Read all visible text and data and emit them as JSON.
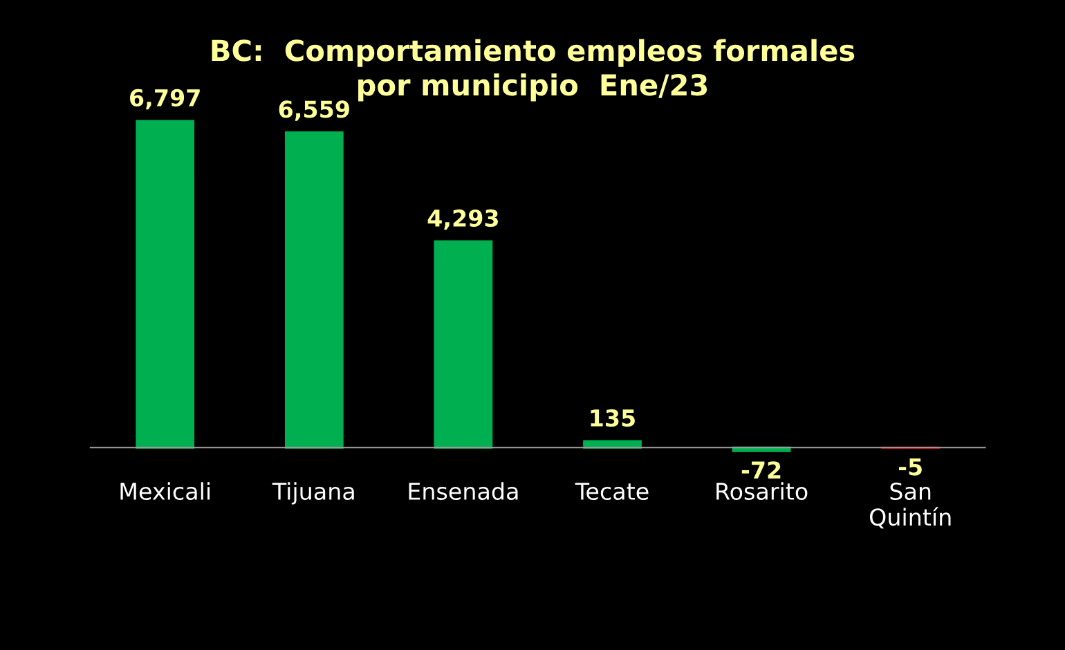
{
  "chart_data": {
    "type": "bar",
    "title": "BC:  Comportamiento empleos formales\npor municipio  Ene/23",
    "categories": [
      "Mexicali",
      "Tijuana",
      "Ensenada",
      "Tecate",
      "Rosarito",
      "San Quintín"
    ],
    "values": [
      6797,
      6559,
      4293,
      135,
      -72,
      -5
    ],
    "colors": [
      "#00b050",
      "#00b050",
      "#00b050",
      "#00b050",
      "#00b050",
      "#c00000"
    ],
    "value_labels": [
      "6,797",
      "6,559",
      "4,293",
      "135",
      "-72",
      "-5"
    ],
    "grid": false,
    "legend": false,
    "tick_labels": "x"
  }
}
